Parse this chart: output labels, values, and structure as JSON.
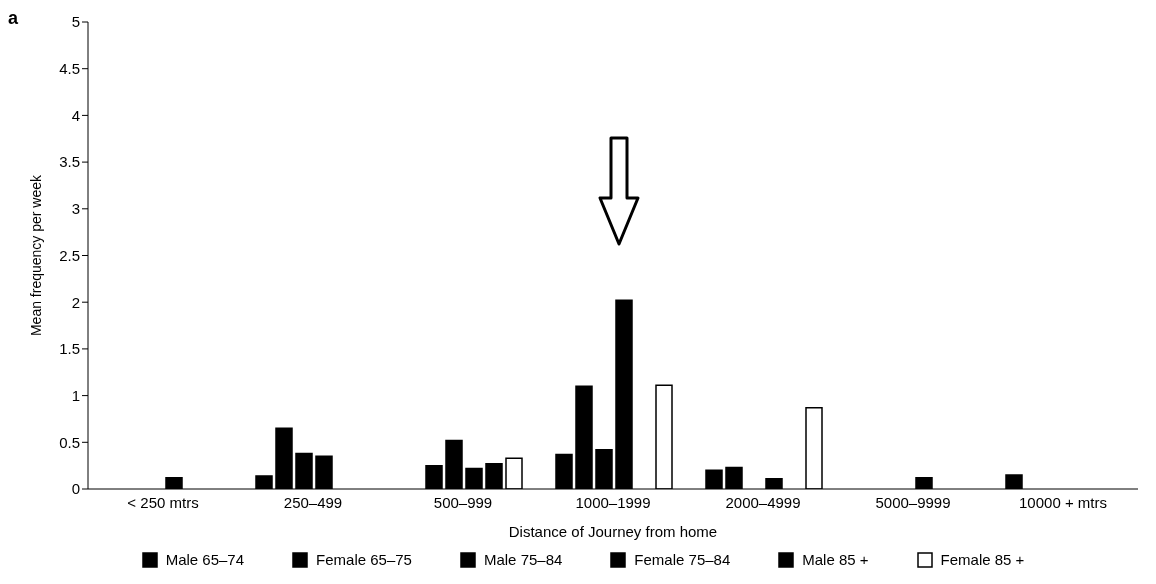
{
  "chart_data": {
    "type": "bar",
    "xlabel": "Distance of Journey from home",
    "ylabel": "Mean frequency per week",
    "annotations": [
      "a"
    ],
    "categories": [
      "< 250 mtrs",
      "250–499",
      "500–999",
      "1000–1999",
      "2000–4999",
      "5000–9999",
      "10000 + mtrs"
    ],
    "series": [
      {
        "name": "Male 65–74",
        "color": "#000000",
        "values": [
          0,
          0.14,
          0,
          0.37,
          0.2,
          0,
          0.15
        ]
      },
      {
        "name": "Female 65–75",
        "color": "#000000",
        "values": [
          0,
          0.65,
          0.25,
          1.1,
          0.23,
          0,
          0
        ]
      },
      {
        "name": "Male 75–84",
        "color": "#000000",
        "values": [
          0,
          0.38,
          0.52,
          0.42,
          0,
          0,
          0
        ]
      },
      {
        "name": "Female 75–84",
        "color": "#000000",
        "values": [
          0.12,
          0.35,
          0.22,
          2.02,
          0.11,
          0.12,
          0
        ]
      },
      {
        "name": "Male 85 +",
        "color": "#000000",
        "values": [
          0,
          0,
          0.27,
          0,
          0,
          0,
          0
        ]
      },
      {
        "name": "Female 85 +",
        "color": "#ffffff",
        "values": [
          0,
          0,
          0.33,
          1.11,
          0.87,
          0,
          0
        ]
      }
    ],
    "ylim": [
      0,
      5
    ],
    "yticks": [
      0,
      0.5,
      1,
      1.5,
      2,
      2.5,
      3,
      3.5,
      4,
      4.5,
      5
    ],
    "grid": false,
    "legend": "bottom"
  }
}
